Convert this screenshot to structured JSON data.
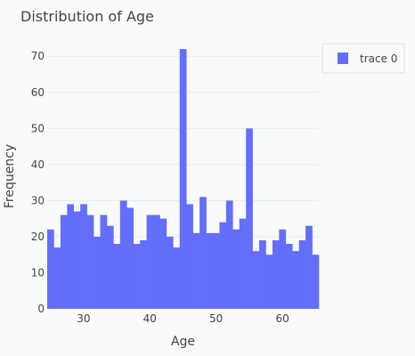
{
  "chart_data": {
    "type": "bar",
    "title": "Distribution of Age",
    "xlabel": "Age",
    "ylabel": "Frequency",
    "xlim": [
      24.5,
      65.5
    ],
    "ylim": [
      0,
      74
    ],
    "x_ticks": [
      30,
      40,
      50,
      60
    ],
    "y_ticks": [
      0,
      10,
      20,
      30,
      40,
      50,
      60,
      70
    ],
    "bin_width": 1,
    "bin_start": 24.5,
    "values": [
      22,
      17,
      26,
      29,
      27,
      29,
      26,
      20,
      26,
      23,
      18,
      30,
      28,
      18,
      19,
      26,
      26,
      25,
      20,
      17,
      72,
      29,
      21,
      31,
      21,
      21,
      24,
      30,
      22,
      25,
      50,
      16,
      19,
      15,
      19,
      22,
      18,
      16,
      19,
      23,
      15
    ],
    "series": [
      {
        "name": "trace 0",
        "color": "#636efa"
      }
    ],
    "grid": true,
    "legend_position": "top-right",
    "background_color": "#f9fafa"
  }
}
